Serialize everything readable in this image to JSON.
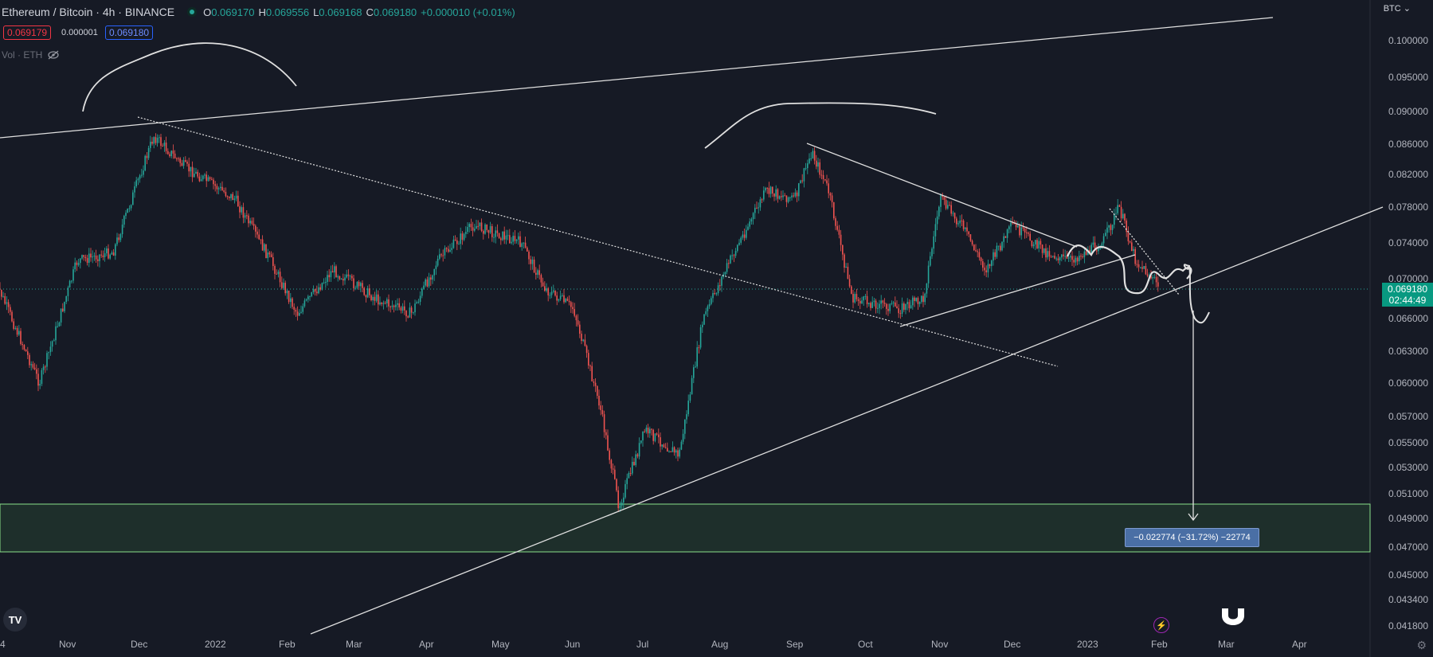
{
  "header": {
    "symbol": "Ethereum / Bitcoin · 4h · BINANCE",
    "ohlc": [
      {
        "key": "O",
        "value": "0.069170"
      },
      {
        "key": "H",
        "value": "0.069556"
      },
      {
        "key": "L",
        "value": "0.069168"
      },
      {
        "key": "C",
        "value": "0.069180"
      }
    ],
    "change": "+0.000010 (+0.01%)"
  },
  "trade": {
    "bid": "0.069179",
    "spread": "0.000001",
    "ask": "0.069180"
  },
  "volume_label": "Vol · ETH",
  "currency": "BTC",
  "current_price": {
    "price": "0.069180",
    "countdown": "02:44:49"
  },
  "measure_label": "−0.022774 (−31.72%) −22774",
  "colors": {
    "up": "#26a69a",
    "down": "#ef5350",
    "background": "#161a25",
    "zone": "#1e2f2b",
    "zone_border": "#8ae08a"
  },
  "chart_data": {
    "type": "candlestick",
    "title": "Ethereum / Bitcoin · 4h · BINANCE",
    "y_ticks": [
      "0.100000",
      "0.095000",
      "0.090000",
      "0.086000",
      "0.082000",
      "0.078000",
      "0.074000",
      "0.070000",
      "0.066000",
      "0.063000",
      "0.060000",
      "0.057000",
      "0.055000",
      "0.053000",
      "0.051000",
      "0.049000",
      "0.047000",
      "0.045000",
      "0.043400",
      "0.041800"
    ],
    "x_ticks": [
      "4",
      "Nov",
      "Dec",
      "2022",
      "Feb",
      "Mar",
      "Apr",
      "May",
      "Jun",
      "Jul",
      "Aug",
      "Sep",
      "Oct",
      "Nov",
      "Dec",
      "2023",
      "Feb",
      "Mar",
      "Apr"
    ],
    "price_path": [
      [
        "2021-10-01",
        0.07
      ],
      [
        "2021-10-20",
        0.06
      ],
      [
        "2021-11-05",
        0.072
      ],
      [
        "2021-11-20",
        0.073
      ],
      [
        "2021-12-07",
        0.087
      ],
      [
        "2021-12-20",
        0.083
      ],
      [
        "2022-01-10",
        0.079
      ],
      [
        "2022-01-25",
        0.072
      ],
      [
        "2022-02-05",
        0.0665
      ],
      [
        "2022-02-20",
        0.071
      ],
      [
        "2022-03-10",
        0.068
      ],
      [
        "2022-03-25",
        0.0665
      ],
      [
        "2022-04-05",
        0.072
      ],
      [
        "2022-04-20",
        0.076
      ],
      [
        "2022-05-10",
        0.074
      ],
      [
        "2022-05-20",
        0.069
      ],
      [
        "2022-06-01",
        0.067
      ],
      [
        "2022-06-12",
        0.058
      ],
      [
        "2022-06-20",
        0.05
      ],
      [
        "2022-07-01",
        0.056
      ],
      [
        "2022-07-15",
        0.054
      ],
      [
        "2022-07-25",
        0.066
      ],
      [
        "2022-08-05",
        0.072
      ],
      [
        "2022-08-20",
        0.08
      ],
      [
        "2022-09-01",
        0.079
      ],
      [
        "2022-09-08",
        0.085
      ],
      [
        "2022-09-15",
        0.08
      ],
      [
        "2022-09-25",
        0.068
      ],
      [
        "2022-10-15",
        0.067
      ],
      [
        "2022-10-25",
        0.068
      ],
      [
        "2022-11-01",
        0.079
      ],
      [
        "2022-11-10",
        0.076
      ],
      [
        "2022-11-20",
        0.071
      ],
      [
        "2022-12-01",
        0.076
      ],
      [
        "2022-12-15",
        0.073
      ],
      [
        "2022-12-25",
        0.072
      ],
      [
        "2023-01-08",
        0.074
      ],
      [
        "2023-01-15",
        0.078
      ],
      [
        "2023-01-22",
        0.072
      ],
      [
        "2023-02-01",
        0.0692
      ]
    ],
    "zone": {
      "top": 0.0502,
      "bottom": 0.0468
    },
    "target_price": 0.0464
  }
}
